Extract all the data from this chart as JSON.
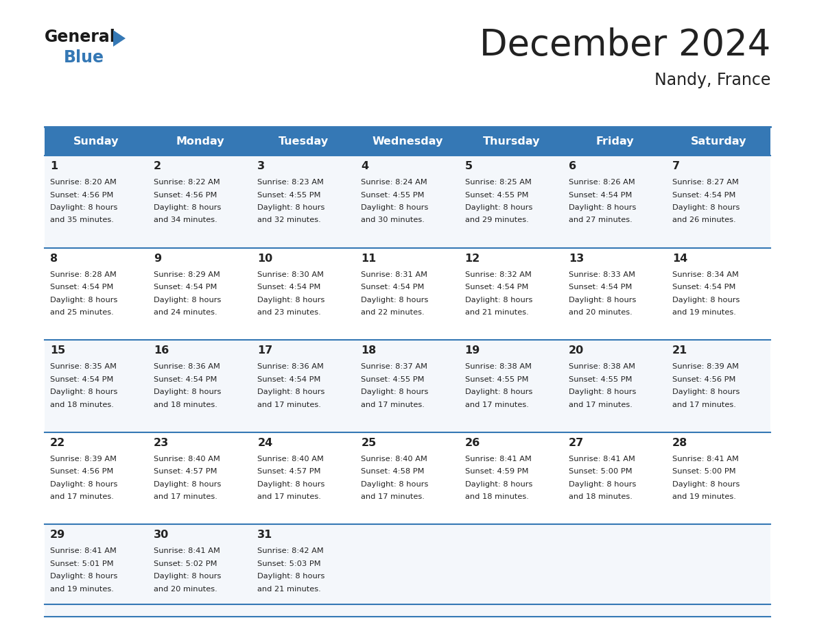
{
  "title": "December 2024",
  "subtitle": "Nandy, France",
  "header_bg_color": "#3578b5",
  "header_text_color": "#ffffff",
  "divider_color": "#3578b5",
  "text_color": "#222222",
  "row_bg_even": "#f4f7fb",
  "row_bg_odd": "#ffffff",
  "days_of_week": [
    "Sunday",
    "Monday",
    "Tuesday",
    "Wednesday",
    "Thursday",
    "Friday",
    "Saturday"
  ],
  "weeks": [
    [
      {
        "day": "1",
        "sunrise": "8:20 AM",
        "sunset": "4:56 PM",
        "daylight_h": "8 hours",
        "daylight_m": "and 35 minutes."
      },
      {
        "day": "2",
        "sunrise": "8:22 AM",
        "sunset": "4:56 PM",
        "daylight_h": "8 hours",
        "daylight_m": "and 34 minutes."
      },
      {
        "day": "3",
        "sunrise": "8:23 AM",
        "sunset": "4:55 PM",
        "daylight_h": "8 hours",
        "daylight_m": "and 32 minutes."
      },
      {
        "day": "4",
        "sunrise": "8:24 AM",
        "sunset": "4:55 PM",
        "daylight_h": "8 hours",
        "daylight_m": "and 30 minutes."
      },
      {
        "day": "5",
        "sunrise": "8:25 AM",
        "sunset": "4:55 PM",
        "daylight_h": "8 hours",
        "daylight_m": "and 29 minutes."
      },
      {
        "day": "6",
        "sunrise": "8:26 AM",
        "sunset": "4:54 PM",
        "daylight_h": "8 hours",
        "daylight_m": "and 27 minutes."
      },
      {
        "day": "7",
        "sunrise": "8:27 AM",
        "sunset": "4:54 PM",
        "daylight_h": "8 hours",
        "daylight_m": "and 26 minutes."
      }
    ],
    [
      {
        "day": "8",
        "sunrise": "8:28 AM",
        "sunset": "4:54 PM",
        "daylight_h": "8 hours",
        "daylight_m": "and 25 minutes."
      },
      {
        "day": "9",
        "sunrise": "8:29 AM",
        "sunset": "4:54 PM",
        "daylight_h": "8 hours",
        "daylight_m": "and 24 minutes."
      },
      {
        "day": "10",
        "sunrise": "8:30 AM",
        "sunset": "4:54 PM",
        "daylight_h": "8 hours",
        "daylight_m": "and 23 minutes."
      },
      {
        "day": "11",
        "sunrise": "8:31 AM",
        "sunset": "4:54 PM",
        "daylight_h": "8 hours",
        "daylight_m": "and 22 minutes."
      },
      {
        "day": "12",
        "sunrise": "8:32 AM",
        "sunset": "4:54 PM",
        "daylight_h": "8 hours",
        "daylight_m": "and 21 minutes."
      },
      {
        "day": "13",
        "sunrise": "8:33 AM",
        "sunset": "4:54 PM",
        "daylight_h": "8 hours",
        "daylight_m": "and 20 minutes."
      },
      {
        "day": "14",
        "sunrise": "8:34 AM",
        "sunset": "4:54 PM",
        "daylight_h": "8 hours",
        "daylight_m": "and 19 minutes."
      }
    ],
    [
      {
        "day": "15",
        "sunrise": "8:35 AM",
        "sunset": "4:54 PM",
        "daylight_h": "8 hours",
        "daylight_m": "and 18 minutes."
      },
      {
        "day": "16",
        "sunrise": "8:36 AM",
        "sunset": "4:54 PM",
        "daylight_h": "8 hours",
        "daylight_m": "and 18 minutes."
      },
      {
        "day": "17",
        "sunrise": "8:36 AM",
        "sunset": "4:54 PM",
        "daylight_h": "8 hours",
        "daylight_m": "and 17 minutes."
      },
      {
        "day": "18",
        "sunrise": "8:37 AM",
        "sunset": "4:55 PM",
        "daylight_h": "8 hours",
        "daylight_m": "and 17 minutes."
      },
      {
        "day": "19",
        "sunrise": "8:38 AM",
        "sunset": "4:55 PM",
        "daylight_h": "8 hours",
        "daylight_m": "and 17 minutes."
      },
      {
        "day": "20",
        "sunrise": "8:38 AM",
        "sunset": "4:55 PM",
        "daylight_h": "8 hours",
        "daylight_m": "and 17 minutes."
      },
      {
        "day": "21",
        "sunrise": "8:39 AM",
        "sunset": "4:56 PM",
        "daylight_h": "8 hours",
        "daylight_m": "and 17 minutes."
      }
    ],
    [
      {
        "day": "22",
        "sunrise": "8:39 AM",
        "sunset": "4:56 PM",
        "daylight_h": "8 hours",
        "daylight_m": "and 17 minutes."
      },
      {
        "day": "23",
        "sunrise": "8:40 AM",
        "sunset": "4:57 PM",
        "daylight_h": "8 hours",
        "daylight_m": "and 17 minutes."
      },
      {
        "day": "24",
        "sunrise": "8:40 AM",
        "sunset": "4:57 PM",
        "daylight_h": "8 hours",
        "daylight_m": "and 17 minutes."
      },
      {
        "day": "25",
        "sunrise": "8:40 AM",
        "sunset": "4:58 PM",
        "daylight_h": "8 hours",
        "daylight_m": "and 17 minutes."
      },
      {
        "day": "26",
        "sunrise": "8:41 AM",
        "sunset": "4:59 PM",
        "daylight_h": "8 hours",
        "daylight_m": "and 18 minutes."
      },
      {
        "day": "27",
        "sunrise": "8:41 AM",
        "sunset": "5:00 PM",
        "daylight_h": "8 hours",
        "daylight_m": "and 18 minutes."
      },
      {
        "day": "28",
        "sunrise": "8:41 AM",
        "sunset": "5:00 PM",
        "daylight_h": "8 hours",
        "daylight_m": "and 19 minutes."
      }
    ],
    [
      {
        "day": "29",
        "sunrise": "8:41 AM",
        "sunset": "5:01 PM",
        "daylight_h": "8 hours",
        "daylight_m": "and 19 minutes."
      },
      {
        "day": "30",
        "sunrise": "8:41 AM",
        "sunset": "5:02 PM",
        "daylight_h": "8 hours",
        "daylight_m": "and 20 minutes."
      },
      {
        "day": "31",
        "sunrise": "8:42 AM",
        "sunset": "5:03 PM",
        "daylight_h": "8 hours",
        "daylight_m": "and 21 minutes."
      },
      null,
      null,
      null,
      null
    ]
  ]
}
